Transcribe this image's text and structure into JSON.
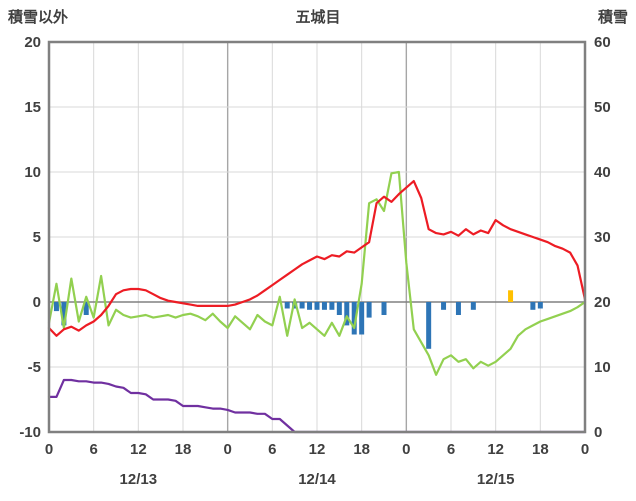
{
  "header": {
    "left_axis_title": "積雪以外",
    "title": "五城目",
    "right_axis_title": "積雪"
  },
  "chart_data": {
    "type": "line+bar",
    "title": "五城目",
    "hours_total": 72,
    "left_axis": {
      "label": "積雪以外",
      "max": 20,
      "min": -10,
      "ticks": [
        20,
        15,
        10,
        5,
        0,
        -5,
        -10
      ]
    },
    "right_axis": {
      "label": "積雪",
      "max": 60,
      "min": 0,
      "ticks": [
        60,
        50,
        40,
        30,
        20,
        10,
        0
      ]
    },
    "x_axis": {
      "hour_step": 6,
      "hour_labels": [
        "0",
        "6",
        "12",
        "18",
        "0",
        "6",
        "12",
        "18",
        "0",
        "6",
        "12",
        "18",
        "0"
      ],
      "day_labels": [
        "12/13",
        "12/14",
        "12/15"
      ]
    },
    "grid": true,
    "legend": "none",
    "series": [
      {
        "name": "purple-line",
        "color": "#7030a0",
        "axis": "left",
        "values": [
          -7.3,
          -7.3,
          -6.0,
          -6.0,
          -6.1,
          -6.1,
          -6.2,
          -6.2,
          -6.3,
          -6.5,
          -6.6,
          -7.0,
          -7.0,
          -7.1,
          -7.5,
          -7.5,
          -7.5,
          -7.6,
          -8.0,
          -8.0,
          -8.0,
          -8.1,
          -8.2,
          -8.2,
          -8.3,
          -8.5,
          -8.5,
          -8.5,
          -8.6,
          -8.6,
          -9.0,
          -9.0,
          -9.5,
          -10.0,
          -10.0,
          -10.0,
          -10.0,
          -10.0,
          -10.0,
          -10.0,
          -10.0,
          -10.0,
          -10.0,
          -10.0,
          -10.0,
          -10.0,
          -10.0,
          -10.0,
          -10.0,
          -10.0,
          -10.0,
          -10.0,
          -10.0,
          -10.0,
          -10.0,
          -10.0,
          -10.0,
          -10.0,
          -10.0,
          -10.0,
          -10.0,
          -10.0,
          -10.0,
          -10.0,
          -10.0,
          -10.0,
          -10.0,
          -10.0,
          -10.0,
          -10.0,
          -10.0,
          -10.0,
          -10.0
        ]
      },
      {
        "name": "green-line",
        "color": "#92d050",
        "axis": "left",
        "values": [
          -1.6,
          1.4,
          -2.0,
          1.8,
          -1.5,
          0.4,
          -1.2,
          2.0,
          -1.8,
          -0.6,
          -1.0,
          -1.2,
          -1.1,
          -1.0,
          -1.2,
          -1.1,
          -1.0,
          -1.2,
          -1.0,
          -0.9,
          -1.1,
          -1.4,
          -0.9,
          -1.5,
          -2.0,
          -1.1,
          -1.6,
          -2.1,
          -1.0,
          -1.5,
          -1.8,
          0.4,
          -2.6,
          0.2,
          -2.0,
          -1.6,
          -2.1,
          -2.6,
          -1.6,
          -2.6,
          -1.1,
          -2.0,
          1.4,
          7.6,
          7.9,
          7.0,
          9.9,
          10.0,
          3.0,
          -2.1,
          -3.1,
          -4.1,
          -5.6,
          -4.4,
          -4.1,
          -4.6,
          -4.4,
          -5.1,
          -4.6,
          -4.9,
          -4.6,
          -4.1,
          -3.6,
          -2.6,
          -2.1,
          -1.8,
          -1.5,
          -1.3,
          -1.1,
          -0.9,
          -0.7,
          -0.4,
          0.0
        ]
      },
      {
        "name": "red-line",
        "color": "#ed1c24",
        "axis": "left",
        "values": [
          -2.0,
          -2.6,
          -2.1,
          -1.9,
          -2.2,
          -1.8,
          -1.5,
          -1.0,
          -0.3,
          0.6,
          0.9,
          1.0,
          1.0,
          0.9,
          0.6,
          0.3,
          0.1,
          0.0,
          -0.1,
          -0.2,
          -0.3,
          -0.3,
          -0.3,
          -0.3,
          -0.3,
          -0.2,
          0.0,
          0.2,
          0.5,
          0.9,
          1.3,
          1.7,
          2.1,
          2.5,
          2.9,
          3.2,
          3.5,
          3.3,
          3.6,
          3.5,
          3.9,
          3.8,
          4.2,
          4.6,
          7.6,
          8.1,
          7.7,
          8.3,
          8.8,
          9.3,
          8.0,
          5.6,
          5.3,
          5.2,
          5.4,
          5.1,
          5.6,
          5.2,
          5.5,
          5.3,
          6.3,
          5.9,
          5.6,
          5.4,
          5.2,
          5.0,
          4.8,
          4.6,
          4.3,
          4.1,
          3.8,
          2.8,
          0.2
        ]
      }
    ],
    "bars": [
      {
        "name": "blue-bars",
        "color": "#2e75b6",
        "points": [
          [
            1,
            -0.7
          ],
          [
            2,
            -1.8
          ],
          [
            5,
            -1.0
          ],
          [
            32,
            -0.5
          ],
          [
            33,
            -0.5
          ],
          [
            34,
            -0.5
          ],
          [
            35,
            -0.6
          ],
          [
            36,
            -0.6
          ],
          [
            37,
            -0.6
          ],
          [
            38,
            -0.6
          ],
          [
            39,
            -1.0
          ],
          [
            40,
            -1.8
          ],
          [
            41,
            -2.5
          ],
          [
            42,
            -2.5
          ],
          [
            43,
            -1.2
          ],
          [
            45,
            -1.0
          ],
          [
            51,
            -3.6
          ],
          [
            53,
            -0.6
          ],
          [
            55,
            -1.0
          ],
          [
            57,
            -0.6
          ],
          [
            65,
            -0.6
          ],
          [
            66,
            -0.5
          ]
        ]
      },
      {
        "name": "orange-bars",
        "color": "#ffc000",
        "points": [
          [
            62,
            0.9
          ]
        ]
      }
    ],
    "colors": {
      "border": "#808080",
      "zero_line": "#808080",
      "grid_minor": "#d9d9d9",
      "grid_major": "#a6a6a6",
      "text": "#404040"
    }
  }
}
